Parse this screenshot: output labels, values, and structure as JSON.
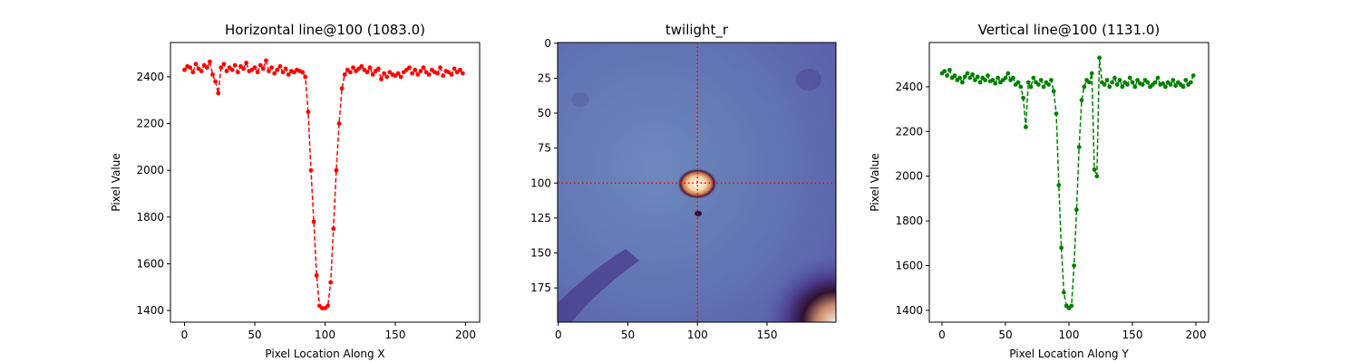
{
  "chart_data": [
    {
      "type": "line",
      "title": "Horizontal line@100 (1083.0)",
      "xlabel": "Pixel Location Along X",
      "ylabel": "Pixel Value",
      "x": [
        0,
        2,
        4,
        6,
        8,
        10,
        12,
        14,
        16,
        18,
        20,
        22,
        24,
        26,
        28,
        30,
        32,
        34,
        36,
        38,
        40,
        42,
        44,
        46,
        48,
        50,
        52,
        54,
        56,
        58,
        60,
        62,
        64,
        66,
        68,
        70,
        72,
        74,
        76,
        78,
        80,
        82,
        84,
        86,
        88,
        90,
        92,
        94,
        96,
        98,
        100,
        102,
        104,
        106,
        108,
        110,
        112,
        114,
        116,
        118,
        120,
        122,
        124,
        126,
        128,
        130,
        132,
        134,
        136,
        138,
        140,
        142,
        144,
        146,
        148,
        150,
        152,
        154,
        156,
        158,
        160,
        162,
        164,
        166,
        168,
        170,
        172,
        174,
        176,
        178,
        180,
        182,
        184,
        186,
        188,
        190,
        192,
        194,
        196,
        198
      ],
      "values": [
        2430,
        2445,
        2440,
        2420,
        2455,
        2435,
        2425,
        2450,
        2440,
        2465,
        2410,
        2380,
        2330,
        2440,
        2455,
        2425,
        2440,
        2430,
        2450,
        2420,
        2445,
        2435,
        2460,
        2425,
        2430,
        2440,
        2420,
        2450,
        2435,
        2470,
        2425,
        2440,
        2415,
        2430,
        2445,
        2420,
        2435,
        2410,
        2425,
        2420,
        2430,
        2425,
        2420,
        2400,
        2250,
        2000,
        1780,
        1550,
        1420,
        1410,
        1410,
        1420,
        1520,
        1750,
        2000,
        2200,
        2350,
        2410,
        2430,
        2420,
        2440,
        2425,
        2435,
        2445,
        2430,
        2420,
        2440,
        2410,
        2425,
        2435,
        2390,
        2415,
        2400,
        2420,
        2410,
        2405,
        2415,
        2400,
        2420,
        2430,
        2440,
        2415,
        2430,
        2410,
        2425,
        2440,
        2420,
        2410,
        2430,
        2420,
        2415,
        2440,
        2405,
        2425,
        2420,
        2410,
        2435,
        2420,
        2430,
        2415
      ],
      "color": "#ff0000",
      "linestyle": "dashed",
      "xlim": [
        -10,
        210
      ],
      "ylim": [
        1350,
        2547
      ],
      "xticks": [
        0,
        50,
        100,
        150,
        200
      ],
      "yticks": [
        1400,
        1600,
        1800,
        2000,
        2200,
        2400
      ]
    },
    {
      "type": "image",
      "title": "twilight_r",
      "colormap": "twilight_r",
      "xlim": [
        -0.5,
        199.5
      ],
      "ylim": [
        199.5,
        -0.5
      ],
      "xticks": [
        0,
        50,
        100,
        150
      ],
      "yticks": [
        0,
        25,
        50,
        75,
        100,
        125,
        150,
        175
      ],
      "crosshair": {
        "x": 100,
        "y": 100,
        "color": "#ff0000"
      }
    },
    {
      "type": "line",
      "title": "Vertical line@100 (1131.0)",
      "xlabel": "Pixel Location Along Y",
      "ylabel": "Pixel Value",
      "x": [
        0,
        2,
        4,
        6,
        8,
        10,
        12,
        14,
        16,
        18,
        20,
        22,
        24,
        26,
        28,
        30,
        32,
        34,
        36,
        38,
        40,
        42,
        44,
        46,
        48,
        50,
        52,
        54,
        56,
        58,
        60,
        62,
        64,
        66,
        68,
        70,
        72,
        74,
        76,
        78,
        80,
        82,
        84,
        86,
        88,
        90,
        92,
        94,
        96,
        98,
        100,
        102,
        104,
        106,
        108,
        110,
        112,
        114,
        116,
        118,
        120,
        122,
        124,
        126,
        128,
        130,
        132,
        134,
        136,
        138,
        140,
        142,
        144,
        146,
        148,
        150,
        152,
        154,
        156,
        158,
        160,
        162,
        164,
        166,
        168,
        170,
        172,
        174,
        176,
        178,
        180,
        182,
        184,
        186,
        188,
        190,
        192,
        194,
        196,
        198
      ],
      "values": [
        2460,
        2470,
        2450,
        2475,
        2440,
        2450,
        2430,
        2440,
        2420,
        2445,
        2460,
        2440,
        2455,
        2430,
        2445,
        2420,
        2440,
        2430,
        2450,
        2425,
        2430,
        2415,
        2440,
        2420,
        2430,
        2440,
        2460,
        2430,
        2440,
        2410,
        2420,
        2400,
        2350,
        2220,
        2420,
        2400,
        2440,
        2420,
        2410,
        2430,
        2400,
        2420,
        2410,
        2430,
        2380,
        2280,
        1960,
        1680,
        1480,
        1420,
        1410,
        1420,
        1600,
        1850,
        2130,
        2340,
        2400,
        2430,
        2420,
        2460,
        2030,
        2000,
        2530,
        2420,
        2410,
        2430,
        2400,
        2420,
        2440,
        2410,
        2430,
        2400,
        2420,
        2410,
        2440,
        2420,
        2400,
        2430,
        2415,
        2410,
        2430,
        2420,
        2400,
        2410,
        2420,
        2440,
        2410,
        2415,
        2400,
        2420,
        2410,
        2430,
        2405,
        2420,
        2410,
        2400,
        2430,
        2410,
        2420,
        2450
      ],
      "color": "#008000",
      "linestyle": "dashed",
      "xlim": [
        -10,
        210
      ],
      "ylim": [
        1347,
        2598
      ],
      "xticks": [
        0,
        50,
        100,
        150,
        200
      ],
      "yticks": [
        1400,
        1600,
        1800,
        2000,
        2200,
        2400
      ]
    }
  ]
}
